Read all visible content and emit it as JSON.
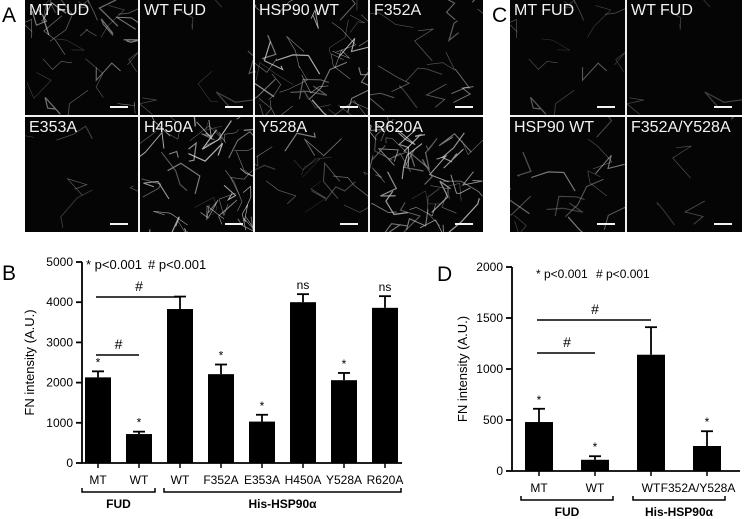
{
  "panels": {
    "A": {
      "letter": "A",
      "tiles": [
        {
          "label": "MT FUD",
          "brightness": 0.35
        },
        {
          "label": "WT FUD",
          "brightness": 0.08
        },
        {
          "label": "HSP90 WT",
          "brightness": 0.55
        },
        {
          "label": "F352A",
          "brightness": 0.2
        },
        {
          "label": "E353A",
          "brightness": 0.08
        },
        {
          "label": "H450A",
          "brightness": 0.6
        },
        {
          "label": "Y528A",
          "brightness": 0.22
        },
        {
          "label": "R620A",
          "brightness": 0.55
        }
      ]
    },
    "C": {
      "letter": "C",
      "tiles": [
        {
          "label": "MT FUD",
          "brightness": 0.15
        },
        {
          "label": "WT FUD",
          "brightness": 0.05
        },
        {
          "label": "HSP90 WT",
          "brightness": 0.2
        },
        {
          "label": "F352A/Y528A",
          "brightness": 0.05
        }
      ]
    },
    "B": {
      "letter": "B"
    },
    "D": {
      "letter": "D"
    }
  },
  "chart_data": [
    {
      "panel": "B",
      "type": "bar",
      "ylabel": "FN intensity (A.U.)",
      "ylim": [
        0,
        5000
      ],
      "yticks": [
        0,
        1000,
        2000,
        3000,
        4000,
        5000
      ],
      "categories": [
        "MT",
        "WT",
        "WT",
        "F352A",
        "E353A",
        "H450A",
        "Y528A",
        "R620A"
      ],
      "values": [
        2130,
        720,
        3830,
        2210,
        1030,
        4000,
        2060,
        3860
      ],
      "errors": [
        150,
        60,
        310,
        240,
        170,
        200,
        180,
        290
      ],
      "marks": [
        "*",
        "*",
        "",
        "*",
        "*",
        "ns",
        "*",
        "ns"
      ],
      "bar_color": "#000000",
      "legend": [
        "* p<0.001",
        "# p<0.001"
      ],
      "comparisons": [
        {
          "from": 0,
          "to": 2,
          "label": "#"
        },
        {
          "from": 0,
          "to": 1,
          "label": "#"
        }
      ],
      "groups": [
        {
          "label": "FUD",
          "from": 0,
          "to": 1
        },
        {
          "label": "His-HSP90α",
          "from": 2,
          "to": 7
        }
      ]
    },
    {
      "panel": "D",
      "type": "bar",
      "ylabel": "FN intensity (A.U.)",
      "ylim": [
        0,
        2000
      ],
      "yticks": [
        0,
        500,
        1000,
        1500,
        2000
      ],
      "categories": [
        "MT",
        "WT",
        "WT",
        "F352A/Y528A"
      ],
      "values": [
        480,
        110,
        1140,
        245
      ],
      "errors": [
        130,
        35,
        270,
        145
      ],
      "marks": [
        "*",
        "*",
        "",
        "*"
      ],
      "bar_color": "#000000",
      "legend": [
        "* p<0.001",
        "# p<0.001"
      ],
      "comparisons": [
        {
          "from": 0,
          "to": 2,
          "label": "#"
        },
        {
          "from": 0,
          "to": 1,
          "label": "#"
        }
      ],
      "groups": [
        {
          "label": "FUD",
          "from": 0,
          "to": 1
        },
        {
          "label": "His-HSP90α",
          "from": 2,
          "to": 3
        }
      ]
    }
  ]
}
